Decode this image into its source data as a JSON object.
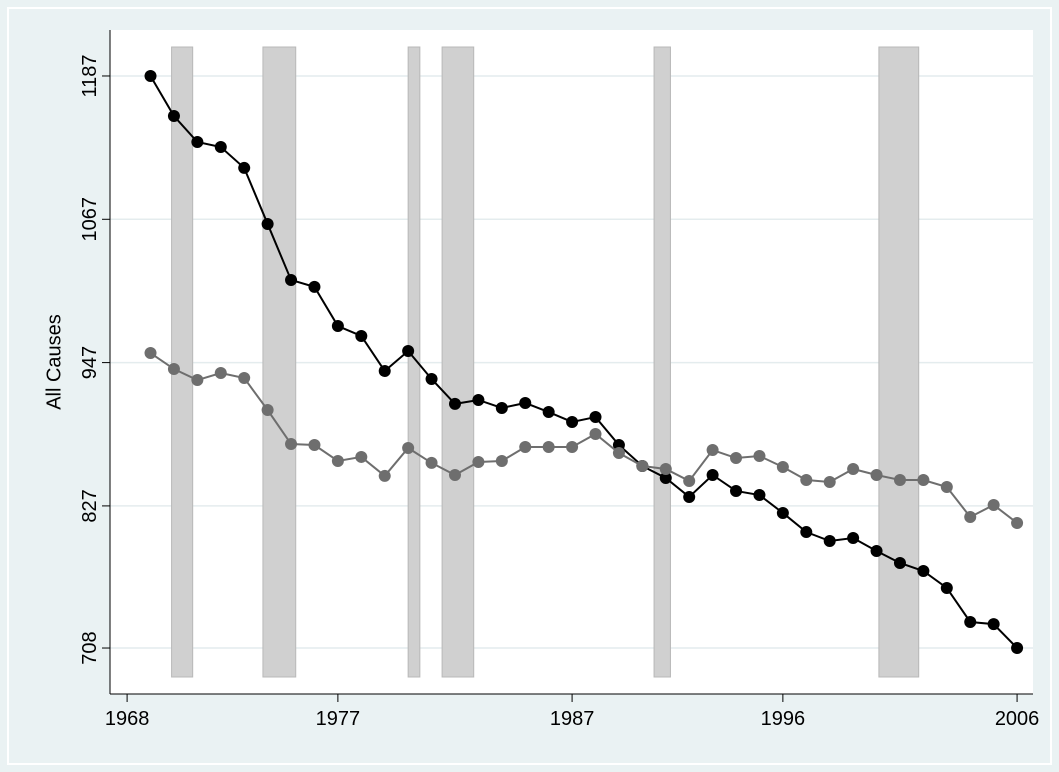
{
  "chart_data": {
    "type": "line",
    "y_label": "All Causes",
    "x": [
      1969,
      1970,
      1971,
      1972,
      1973,
      1974,
      1975,
      1976,
      1977,
      1978,
      1979,
      1980,
      1981,
      1982,
      1983,
      1984,
      1985,
      1986,
      1987,
      1988,
      1989,
      1990,
      1991,
      1992,
      1993,
      1994,
      1995,
      1996,
      1997,
      1998,
      1999,
      2000,
      2001,
      2002,
      2003,
      2004,
      2005,
      2006
    ],
    "series": [
      {
        "color": "#000000",
        "values": [
          1187,
          1153.5,
          1131.7,
          1127.5,
          1110.0,
          1063.1,
          1016.2,
          1010.4,
          977.6,
          969.3,
          940.0,
          956.7,
          933.3,
          912.4,
          915.7,
          909.0,
          913.2,
          905.6,
          897.3,
          901.4,
          878.0,
          860.4,
          850.4,
          834.5,
          852.9,
          839.5,
          836.1,
          821.1,
          805.1,
          797.6,
          800.1,
          789.2,
          779.2,
          772.5,
          758.3,
          729.8,
          728.0,
          708
        ]
      },
      {
        "color": "#6e6e6e",
        "values": [
          955.0,
          941.6,
          932.4,
          938.3,
          934.1,
          907.3,
          878.8,
          878.0,
          864.6,
          868.0,
          852.1,
          875.5,
          863.0,
          852.9,
          863.8,
          864.6,
          876.3,
          876.3,
          876.3,
          887.2,
          871.3,
          860.4,
          857.9,
          847.9,
          873.8,
          867.1,
          868.8,
          859.6,
          848.7,
          847.0,
          857.9,
          852.9,
          848.7,
          848.7,
          842.8,
          817.7,
          827.8,
          812.7
        ]
      }
    ],
    "shaded_regions": [
      [
        1969.9,
        1970.8
      ],
      [
        1973.8,
        1975.2
      ],
      [
        1980.0,
        1980.5
      ],
      [
        1981.45,
        1982.8
      ],
      [
        1990.5,
        1991.2
      ],
      [
        2000.1,
        2001.8
      ]
    ],
    "shade_color": "#d0d0d0",
    "xlim": [
      1967.27,
      2006.68
    ],
    "ylim": [
      669.5,
      1225.5
    ],
    "xticks": [
      1968,
      1977,
      1987,
      1996,
      2006
    ],
    "yticks": [
      708,
      827,
      947,
      1067,
      1187
    ],
    "grid": true
  }
}
